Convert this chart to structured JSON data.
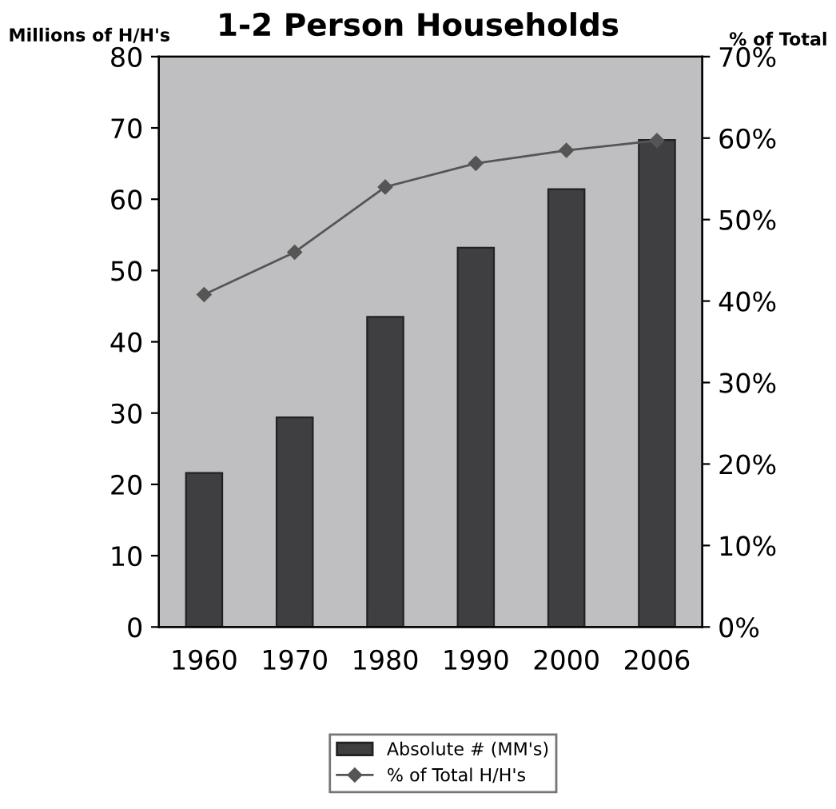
{
  "chart_data": {
    "type": "bar",
    "title": "1-2 Person Households",
    "ylabel": "Millions of H/H's",
    "y2label": "% of Total",
    "categories": [
      "1960",
      "1970",
      "1980",
      "1990",
      "2000",
      "2006"
    ],
    "series": [
      {
        "name": "Absolute # (MM's)",
        "color": "#3f3f41",
        "values": [
          21.6,
          29.4,
          43.5,
          53.2,
          61.4,
          68.3
        ]
      },
      {
        "name": "% of Total H/H's",
        "type": "line",
        "axis": "y2",
        "color": "#555555",
        "marker": "diamond",
        "values": [
          40.8,
          46.0,
          54.0,
          56.9,
          58.5,
          59.7
        ]
      }
    ],
    "ylim": [
      0,
      80
    ],
    "yticks": [
      0,
      10,
      20,
      30,
      40,
      50,
      60,
      70,
      80
    ],
    "y2lim": [
      0,
      70
    ],
    "y2ticks": [
      {
        "value": 0,
        "label": "0%"
      },
      {
        "value": 10,
        "label": "10%"
      },
      {
        "value": 20,
        "label": "20%"
      },
      {
        "value": 30,
        "label": "30%"
      },
      {
        "value": 40,
        "label": "40%"
      },
      {
        "value": 50,
        "label": "50%"
      },
      {
        "value": 60,
        "label": "60%"
      },
      {
        "value": 70,
        "label": "70%"
      }
    ],
    "grid": false,
    "legend": "bottom"
  }
}
